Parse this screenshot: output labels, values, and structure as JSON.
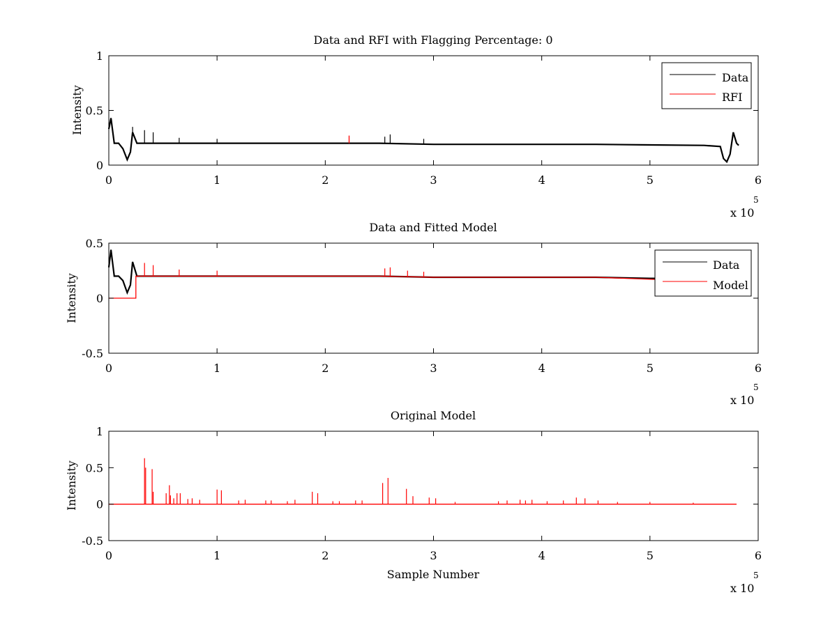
{
  "colors": {
    "data": "#000000",
    "rfi": "#ff0000",
    "model": "#ff0000",
    "axes": "#000000",
    "background": "#ffffff"
  },
  "chart_data": [
    {
      "type": "line",
      "title": "Data and RFI with Flagging Percentage: 0",
      "xlabel": "",
      "ylabel": "Intensity",
      "xlim": [
        0,
        600000
      ],
      "ylim": [
        0,
        1
      ],
      "x_ticks": [
        0,
        1,
        2,
        3,
        4,
        5,
        6
      ],
      "y_ticks": [
        "0",
        "0.5",
        "1"
      ],
      "x_exponent_label": "x 10",
      "x_exponent": "5",
      "grid": false,
      "legend": {
        "placement": "top-right",
        "entries": [
          "Data",
          "RFI"
        ]
      },
      "series": [
        {
          "name": "Data",
          "color": "#000000",
          "x": [
            0,
            2000,
            5000,
            9000,
            13000,
            17000,
            20000,
            22000,
            26000,
            35000,
            60000,
            100000,
            150000,
            200000,
            250000,
            300000,
            350000,
            400000,
            450000,
            500000,
            550000,
            565000,
            568000,
            571000,
            574000,
            577000,
            580000,
            582000
          ],
          "y": [
            0.33,
            0.43,
            0.2,
            0.2,
            0.15,
            0.05,
            0.12,
            0.3,
            0.2,
            0.2,
            0.2,
            0.2,
            0.2,
            0.2,
            0.2,
            0.19,
            0.19,
            0.19,
            0.19,
            0.185,
            0.18,
            0.17,
            0.06,
            0.03,
            0.1,
            0.3,
            0.2,
            0.18
          ]
        },
        {
          "name": "RFI",
          "color": "#ff0000",
          "x": [
            222000,
            222000,
            222000
          ],
          "y": [
            0.2,
            0.27,
            0.2
          ]
        }
      ],
      "spikes": [
        {
          "x": 22000,
          "y": 0.35
        },
        {
          "x": 33000,
          "y": 0.32
        },
        {
          "x": 41000,
          "y": 0.3
        },
        {
          "x": 65000,
          "y": 0.25
        },
        {
          "x": 100000,
          "y": 0.24
        },
        {
          "x": 255000,
          "y": 0.26
        },
        {
          "x": 260000,
          "y": 0.28
        },
        {
          "x": 291000,
          "y": 0.24
        }
      ]
    },
    {
      "type": "line",
      "title": "Data and Fitted Model",
      "xlabel": "",
      "ylabel": "Intensity",
      "xlim": [
        0,
        600000
      ],
      "ylim": [
        -0.5,
        0.5
      ],
      "x_ticks": [
        0,
        1,
        2,
        3,
        4,
        5,
        6
      ],
      "y_ticks": [
        "-0.5",
        "0",
        "0.5"
      ],
      "x_exponent_label": "x 10",
      "x_exponent": "5",
      "grid": false,
      "legend": {
        "placement": "top-right",
        "entries": [
          "Data",
          "Model"
        ]
      },
      "series": [
        {
          "name": "Data",
          "color": "#000000",
          "x": [
            0,
            2000,
            5000,
            9000,
            13000,
            17000,
            20000,
            22000,
            26000,
            35000,
            60000,
            100000,
            150000,
            200000,
            250000,
            300000,
            350000,
            400000,
            450000,
            500000,
            505000
          ],
          "y": [
            0.28,
            0.44,
            0.2,
            0.2,
            0.16,
            0.05,
            0.12,
            0.33,
            0.2,
            0.2,
            0.2,
            0.2,
            0.2,
            0.2,
            0.2,
            0.19,
            0.19,
            0.19,
            0.19,
            0.18,
            0.18
          ]
        },
        {
          "name": "Model",
          "color": "#ff0000",
          "x": [
            0,
            25000,
            25000,
            35000,
            60000,
            100000,
            150000,
            200000,
            250000,
            300000,
            350000,
            400000,
            450000,
            505000
          ],
          "y": [
            0,
            0,
            0.2,
            0.2,
            0.2,
            0.2,
            0.2,
            0.2,
            0.2,
            0.19,
            0.19,
            0.19,
            0.19,
            0.17
          ]
        }
      ],
      "spikes": [
        {
          "x": 33000,
          "y": 0.32
        },
        {
          "x": 41000,
          "y": 0.3
        },
        {
          "x": 65000,
          "y": 0.26
        },
        {
          "x": 100000,
          "y": 0.25
        },
        {
          "x": 255000,
          "y": 0.27
        },
        {
          "x": 260000,
          "y": 0.28
        },
        {
          "x": 276000,
          "y": 0.25
        },
        {
          "x": 291000,
          "y": 0.24
        }
      ]
    },
    {
      "type": "line",
      "title": "Original Model",
      "xlabel": "Sample Number",
      "ylabel": "Intensity",
      "xlim": [
        0,
        600000
      ],
      "ylim": [
        -0.5,
        1
      ],
      "x_ticks": [
        0,
        1,
        2,
        3,
        4,
        5,
        6
      ],
      "y_ticks": [
        "-0.5",
        "0",
        "0.5",
        "1"
      ],
      "x_exponent_label": "x 10",
      "x_exponent": "5",
      "grid": false,
      "series": [
        {
          "name": "Model",
          "color": "#ff0000",
          "x": [
            0,
            580000
          ],
          "y": [
            0,
            0
          ]
        }
      ],
      "spikes": [
        {
          "x": 33000,
          "y": 0.63
        },
        {
          "x": 34000,
          "y": 0.5
        },
        {
          "x": 40000,
          "y": 0.48
        },
        {
          "x": 41000,
          "y": 0.17
        },
        {
          "x": 53000,
          "y": 0.15
        },
        {
          "x": 56000,
          "y": 0.26
        },
        {
          "x": 57000,
          "y": 0.12
        },
        {
          "x": 60000,
          "y": 0.08
        },
        {
          "x": 63000,
          "y": 0.15
        },
        {
          "x": 66000,
          "y": 0.15
        },
        {
          "x": 73000,
          "y": 0.07
        },
        {
          "x": 77000,
          "y": 0.08
        },
        {
          "x": 84000,
          "y": 0.06
        },
        {
          "x": 100000,
          "y": 0.2
        },
        {
          "x": 104000,
          "y": 0.19
        },
        {
          "x": 120000,
          "y": 0.05
        },
        {
          "x": 126000,
          "y": 0.06
        },
        {
          "x": 145000,
          "y": 0.05
        },
        {
          "x": 150000,
          "y": 0.05
        },
        {
          "x": 165000,
          "y": 0.04
        },
        {
          "x": 172000,
          "y": 0.06
        },
        {
          "x": 188000,
          "y": 0.17
        },
        {
          "x": 193000,
          "y": 0.15
        },
        {
          "x": 207000,
          "y": 0.04
        },
        {
          "x": 213000,
          "y": 0.04
        },
        {
          "x": 228000,
          "y": 0.05
        },
        {
          "x": 234000,
          "y": 0.05
        },
        {
          "x": 253000,
          "y": 0.29
        },
        {
          "x": 258000,
          "y": 0.36
        },
        {
          "x": 275000,
          "y": 0.21
        },
        {
          "x": 281000,
          "y": 0.11
        },
        {
          "x": 296000,
          "y": 0.09
        },
        {
          "x": 302000,
          "y": 0.08
        },
        {
          "x": 320000,
          "y": 0.03
        },
        {
          "x": 360000,
          "y": 0.04
        },
        {
          "x": 368000,
          "y": 0.05
        },
        {
          "x": 380000,
          "y": 0.06
        },
        {
          "x": 385000,
          "y": 0.05
        },
        {
          "x": 391000,
          "y": 0.06
        },
        {
          "x": 405000,
          "y": 0.04
        },
        {
          "x": 420000,
          "y": 0.05
        },
        {
          "x": 432000,
          "y": 0.09
        },
        {
          "x": 440000,
          "y": 0.08
        },
        {
          "x": 452000,
          "y": 0.05
        },
        {
          "x": 470000,
          "y": 0.03
        },
        {
          "x": 500000,
          "y": 0.03
        },
        {
          "x": 540000,
          "y": 0.02
        }
      ]
    }
  ]
}
